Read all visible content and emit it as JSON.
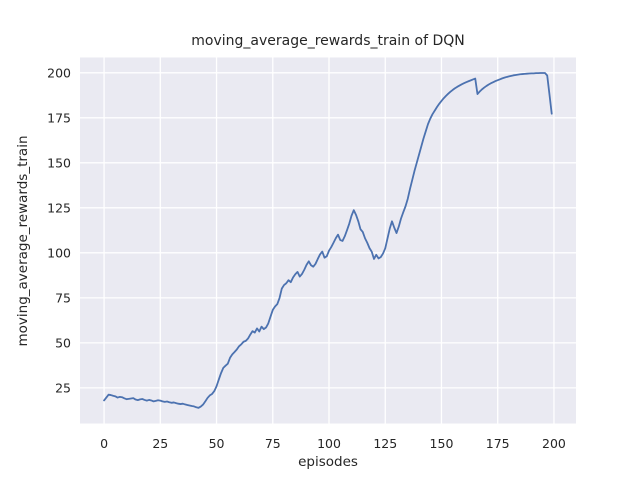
{
  "chart_data": {
    "type": "line",
    "title": "moving_average_rewards_train of DQN",
    "xlabel": "episodes",
    "ylabel": "moving_average_rewards_train",
    "xlim": [
      -10.7,
      209.8
    ],
    "ylim": [
      5.2,
      208.5
    ],
    "xticks": [
      0,
      25,
      50,
      75,
      100,
      125,
      150,
      175,
      200
    ],
    "yticks": [
      25,
      50,
      75,
      100,
      125,
      150,
      175,
      200
    ],
    "grid": true,
    "legend": false,
    "style": {
      "figure_bg": "#ffffff",
      "plot_bg": "#eaeaf2",
      "grid_color": "#ffffff",
      "text_color": "#262626",
      "line_color": "#4c72b0",
      "line_width": 1.8
    },
    "series": [
      {
        "name": "moving_average_rewards_train",
        "color": "#4c72b0",
        "x0": 0,
        "dx": 1,
        "y": [
          18.0,
          19.6,
          21.2,
          21.0,
          20.6,
          20.3,
          19.6,
          20.0,
          19.8,
          19.2,
          18.7,
          18.9,
          19.1,
          19.3,
          18.5,
          18.2,
          18.6,
          18.8,
          18.3,
          17.9,
          18.3,
          18.0,
          17.5,
          17.8,
          18.1,
          17.9,
          17.5,
          17.2,
          17.4,
          17.0,
          16.7,
          16.9,
          16.5,
          16.2,
          16.0,
          16.2,
          15.8,
          15.5,
          15.2,
          14.9,
          14.7,
          14.2,
          13.9,
          14.6,
          15.7,
          17.5,
          19.4,
          20.8,
          21.6,
          23.2,
          25.9,
          29.6,
          33.2,
          36.1,
          37.3,
          38.4,
          41.7,
          43.6,
          44.9,
          46.3,
          48.1,
          49.2,
          50.6,
          51.1,
          52.4,
          54.6,
          56.5,
          55.7,
          58.0,
          56.3,
          59.0,
          57.6,
          58.5,
          60.8,
          64.6,
          68.3,
          70.2,
          71.5,
          74.9,
          80.1,
          82.1,
          83.1,
          84.8,
          83.7,
          86.3,
          88.1,
          89.4,
          86.8,
          88.3,
          90.6,
          93.3,
          95.3,
          93.1,
          92.3,
          93.9,
          96.6,
          99.1,
          100.7,
          97.3,
          98.1,
          101.2,
          103.2,
          105.6,
          108.1,
          110.1,
          107.1,
          106.6,
          109.2,
          112.6,
          116.2,
          120.6,
          123.7,
          121.1,
          117.6,
          113.1,
          111.6,
          108.1,
          105.6,
          102.6,
          100.6,
          96.6,
          98.9,
          96.9,
          97.6,
          99.6,
          102.5,
          108.0,
          113.5,
          117.5,
          114.0,
          111.0,
          114.5,
          119.0,
          122.5,
          125.8,
          130.0,
          135.5,
          140.5,
          145.5,
          150.0,
          154.5,
          159.0,
          163.5,
          167.5,
          171.5,
          174.5,
          177.0,
          179.0,
          181.0,
          182.8,
          184.4,
          185.9,
          187.2,
          188.4,
          189.5,
          190.5,
          191.4,
          192.2,
          192.9,
          193.6,
          194.2,
          194.8,
          195.3,
          195.8,
          196.3,
          196.8,
          188.2,
          189.6,
          190.8,
          191.8,
          192.7,
          193.5,
          194.2,
          194.8,
          195.4,
          195.9,
          196.4,
          196.9,
          197.3,
          197.7,
          198.0,
          198.3,
          198.6,
          198.8,
          199.0,
          199.2,
          199.3,
          199.4,
          199.5,
          199.6,
          199.7,
          199.7,
          199.8,
          199.8,
          199.9,
          199.9,
          199.9,
          198.5,
          188.0,
          177.3
        ]
      }
    ]
  }
}
